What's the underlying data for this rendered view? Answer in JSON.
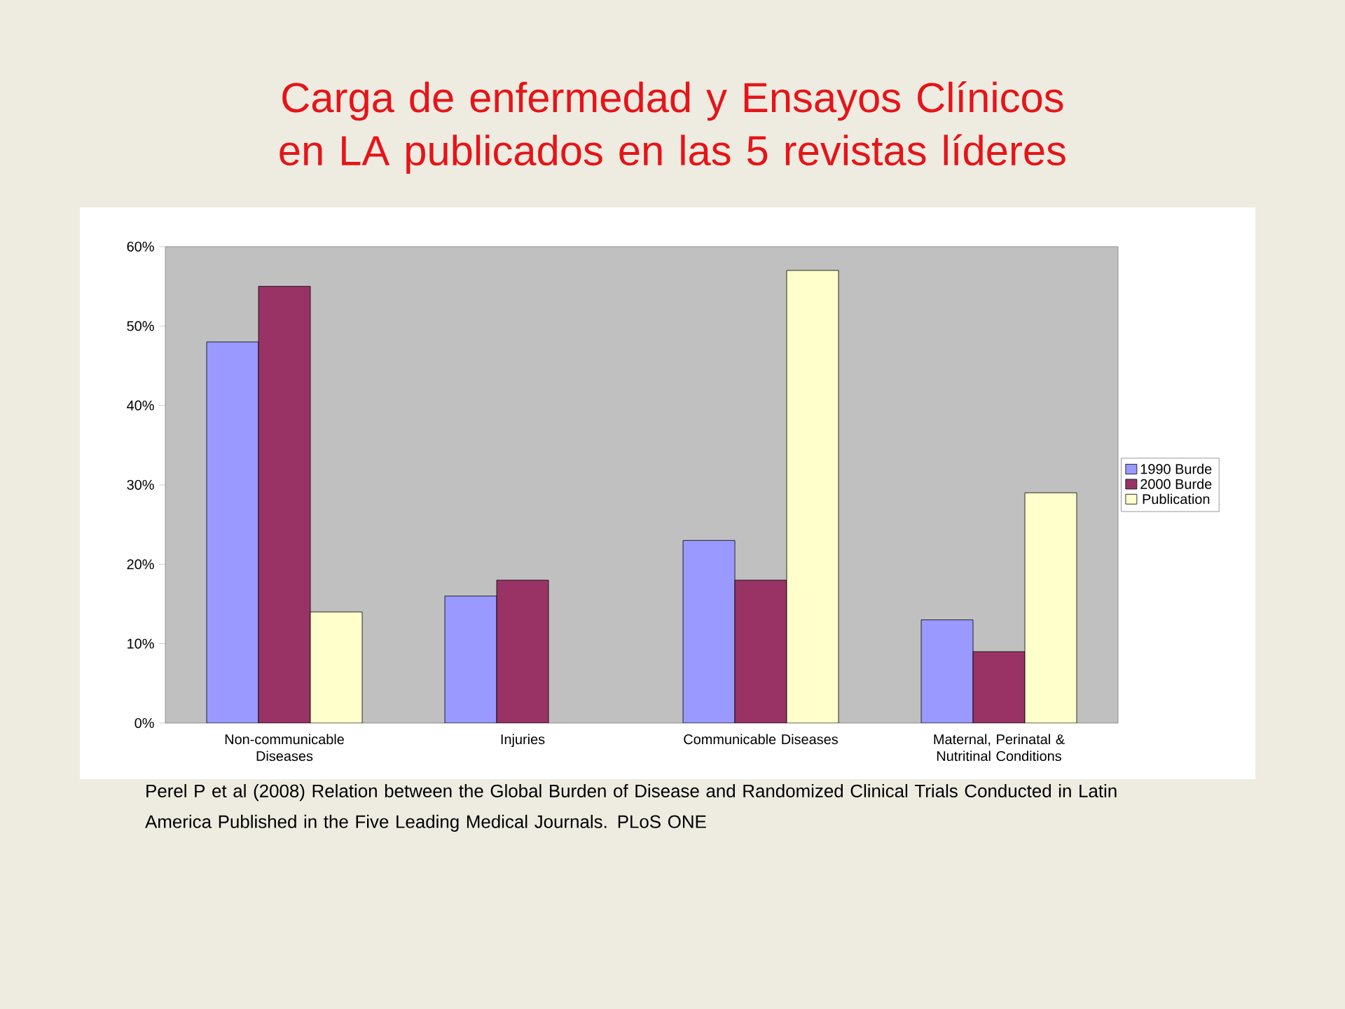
{
  "chart_data": {
    "type": "bar",
    "title": "Carga de enfermedad y Ensayos Clínicos en LA publicados en las 5 revistas líderes",
    "categories": [
      "Non-communicable Diseases",
      "Injuries",
      "Communicable Diseases",
      "Maternal, Perinatal & Nutritinal Conditions"
    ],
    "series": [
      {
        "name": "1990 Burde",
        "color": "#9999ff",
        "values": [
          48,
          16,
          23,
          13
        ]
      },
      {
        "name": "2000 Burde",
        "color": "#993366",
        "values": [
          55,
          18,
          18,
          9
        ]
      },
      {
        "name": "Publication",
        "color": "#ffffcc",
        "values": [
          14,
          null,
          57,
          29
        ]
      }
    ],
    "ylim": [
      0,
      60
    ],
    "yticks": [
      {
        "value": 0,
        "label": "0%"
      },
      {
        "value": 10,
        "label": "10%"
      },
      {
        "value": 20,
        "label": "20%"
      },
      {
        "value": 30,
        "label": "30%"
      },
      {
        "value": 40,
        "label": "40%"
      },
      {
        "value": 50,
        "label": "50%"
      },
      {
        "value": 60,
        "label": "60%"
      }
    ],
    "legend": "right",
    "annotations": [
      "Perel P et al (2008) Relation between the Global Burden of Disease and Randomized Clinical Trials Conducted in Latin America Published in the Five Leading Medical Journals. PLoS ONE"
    ]
  }
}
